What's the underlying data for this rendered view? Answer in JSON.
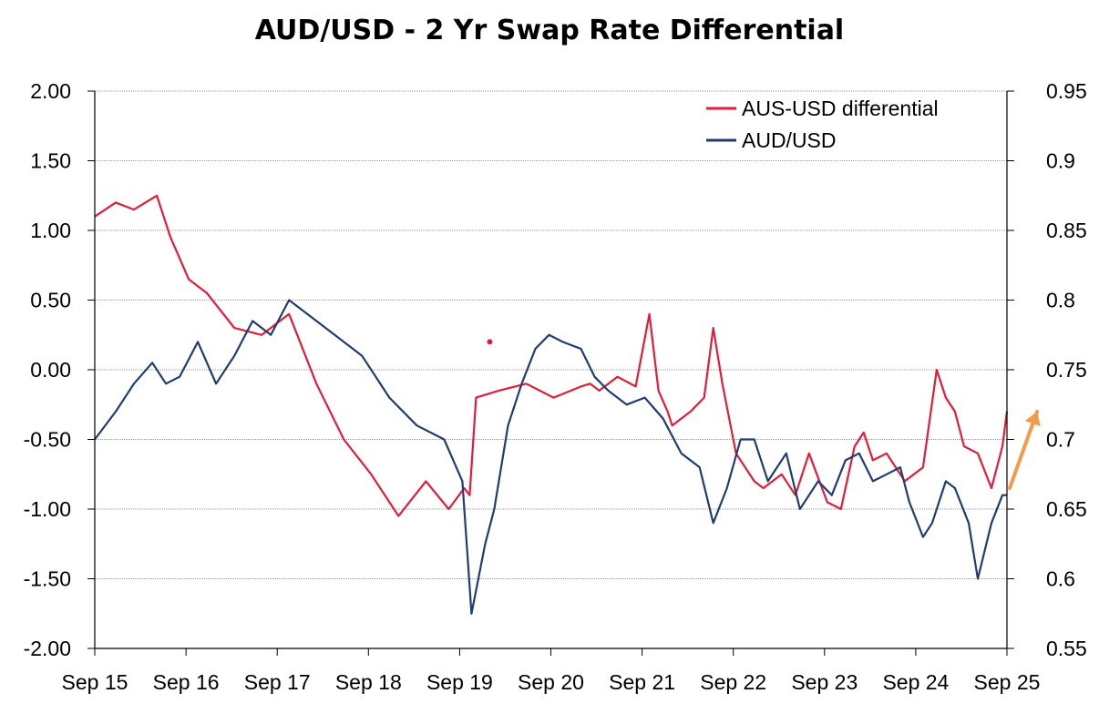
{
  "chart_data": {
    "type": "line",
    "title": "AUD/USD - 2 Yr Swap Rate Differential",
    "x_tick_labels": [
      "Sep 15",
      "Sep 16",
      "Sep 17",
      "Sep 18",
      "Sep 19",
      "Sep 20",
      "Sep 21",
      "Sep 22",
      "Sep 23",
      "Sep 24",
      "Sep 25"
    ],
    "x_range": [
      2015.67,
      2025.67
    ],
    "y_left": {
      "range": [
        -2.0,
        2.0
      ],
      "ticks": [
        "2.00",
        "1.50",
        "1.00",
        "0.50",
        "0.00",
        "-0.50",
        "-1.00",
        "-1.50",
        "-2.00"
      ]
    },
    "y_right": {
      "range": [
        0.55,
        0.95
      ],
      "ticks": [
        "0.95",
        "0.9",
        "0.85",
        "0.8",
        "0.75",
        "0.7",
        "0.65",
        "0.6",
        "0.55"
      ]
    },
    "grid": true,
    "legend_position": "top-right",
    "series": [
      {
        "name": "AUS-USD differential",
        "axis": "left",
        "color": "#e11d3a",
        "x": [
          2015.67,
          2015.9,
          2016.1,
          2016.35,
          2016.5,
          2016.7,
          2016.9,
          2017.2,
          2017.5,
          2017.8,
          2018.1,
          2018.4,
          2018.7,
          2019.0,
          2019.3,
          2019.55,
          2019.72,
          2019.78,
          2019.85,
          2020.1,
          2020.4,
          2020.7,
          2021.0,
          2021.1,
          2021.2,
          2021.4,
          2021.6,
          2021.75,
          2021.85,
          2021.95,
          2022.0,
          2022.2,
          2022.35,
          2022.45,
          2022.55,
          2022.7,
          2022.9,
          2023.0,
          2023.2,
          2023.35,
          2023.5,
          2023.7,
          2023.85,
          2024.0,
          2024.1,
          2024.2,
          2024.35,
          2024.55,
          2024.75,
          2024.9,
          2025.0,
          2025.1,
          2025.2,
          2025.35,
          2025.5,
          2025.62,
          2025.67
        ],
        "y": [
          1.1,
          1.2,
          1.15,
          1.25,
          0.95,
          0.65,
          0.55,
          0.3,
          0.25,
          0.4,
          -0.1,
          -0.5,
          -0.75,
          -1.05,
          -0.8,
          -1.0,
          -0.85,
          -0.9,
          -0.2,
          -0.15,
          -0.1,
          -0.2,
          -0.12,
          -0.1,
          -0.15,
          -0.05,
          -0.12,
          0.4,
          -0.15,
          -0.3,
          -0.4,
          -0.3,
          -0.2,
          0.3,
          -0.1,
          -0.6,
          -0.8,
          -0.85,
          -0.75,
          -0.9,
          -0.6,
          -0.95,
          -1.0,
          -0.55,
          -0.45,
          -0.65,
          -0.6,
          -0.8,
          -0.7,
          0.0,
          -0.2,
          -0.3,
          -0.55,
          -0.6,
          -0.85,
          -0.55,
          -0.3
        ]
      },
      {
        "name": "AUD/USD",
        "axis": "right",
        "color": "#1f3d6e",
        "x": [
          2015.67,
          2015.9,
          2016.1,
          2016.3,
          2016.45,
          2016.6,
          2016.8,
          2017.0,
          2017.2,
          2017.4,
          2017.6,
          2017.8,
          2018.0,
          2018.3,
          2018.6,
          2018.9,
          2019.2,
          2019.5,
          2019.7,
          2019.8,
          2019.95,
          2020.05,
          2020.2,
          2020.35,
          2020.5,
          2020.65,
          2020.8,
          2021.0,
          2021.15,
          2021.3,
          2021.5,
          2021.7,
          2021.9,
          2022.1,
          2022.3,
          2022.45,
          2022.6,
          2022.75,
          2022.9,
          2023.05,
          2023.25,
          2023.4,
          2023.6,
          2023.75,
          2023.9,
          2024.05,
          2024.2,
          2024.35,
          2024.5,
          2024.6,
          2024.75,
          2024.85,
          2025.0,
          2025.1,
          2025.25,
          2025.35,
          2025.5,
          2025.62,
          2025.67
        ],
        "y": [
          0.7,
          0.72,
          0.74,
          0.755,
          0.74,
          0.745,
          0.77,
          0.74,
          0.76,
          0.785,
          0.775,
          0.8,
          0.79,
          0.775,
          0.76,
          0.73,
          0.71,
          0.7,
          0.67,
          0.575,
          0.625,
          0.65,
          0.71,
          0.74,
          0.765,
          0.775,
          0.77,
          0.765,
          0.745,
          0.735,
          0.725,
          0.73,
          0.715,
          0.69,
          0.68,
          0.64,
          0.665,
          0.7,
          0.7,
          0.67,
          0.69,
          0.65,
          0.67,
          0.66,
          0.685,
          0.69,
          0.67,
          0.675,
          0.68,
          0.655,
          0.63,
          0.64,
          0.67,
          0.665,
          0.64,
          0.6,
          0.64,
          0.66,
          0.66
        ]
      }
    ],
    "annotations": [
      {
        "type": "dot",
        "color": "#e11d3a",
        "x": 2020.0,
        "y": 0.2
      },
      {
        "type": "arrow",
        "color": "#f39b4a",
        "x1": 2025.7,
        "y1": -0.85,
        "x2": 2026.0,
        "y2": -0.3
      }
    ]
  }
}
